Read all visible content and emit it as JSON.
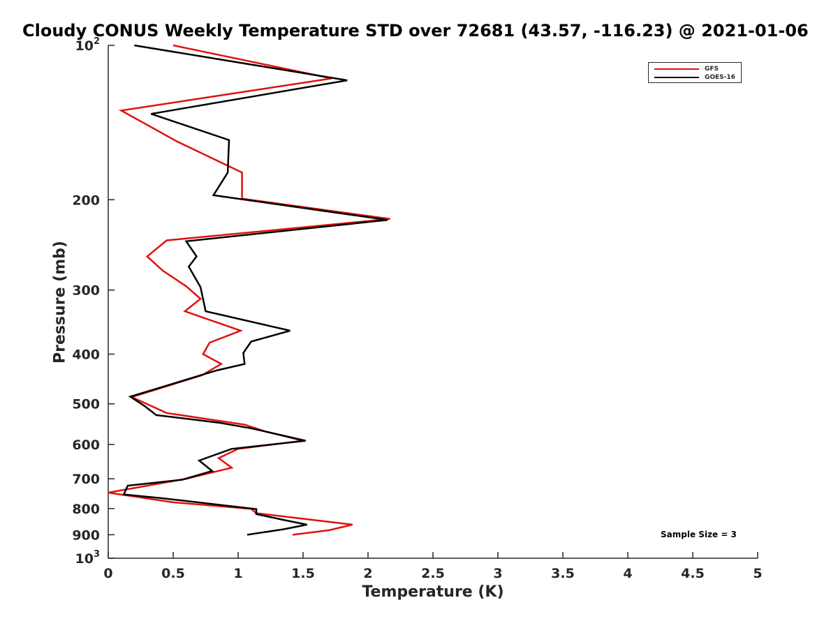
{
  "chart_data": {
    "type": "line",
    "title": "Cloudy CONUS Weekly Temperature STD over 72681 (43.57, -116.23) @ 2021-01-06",
    "xlabel": "Temperature (K)",
    "ylabel": "Pressure (mb)",
    "xlim": [
      0,
      5
    ],
    "ylim": [
      100,
      1000
    ],
    "y_scale": "log",
    "y_reversed": true,
    "grid": false,
    "legend_position": "top-right",
    "x_ticks": [
      "0",
      "0.5",
      "1",
      "1.5",
      "2",
      "2.5",
      "3",
      "3.5",
      "4",
      "4.5",
      "5"
    ],
    "y_ticks": [
      {
        "value": 100,
        "label": "10",
        "sup": "2"
      },
      {
        "value": 200,
        "label": "200",
        "sup": ""
      },
      {
        "value": 300,
        "label": "300",
        "sup": ""
      },
      {
        "value": 400,
        "label": "400",
        "sup": ""
      },
      {
        "value": 500,
        "label": "500",
        "sup": ""
      },
      {
        "value": 600,
        "label": "600",
        "sup": ""
      },
      {
        "value": 700,
        "label": "700",
        "sup": ""
      },
      {
        "value": 800,
        "label": "800",
        "sup": ""
      },
      {
        "value": 900,
        "label": "900",
        "sup": ""
      },
      {
        "value": 1000,
        "label": "10",
        "sup": "3"
      }
    ],
    "series": [
      {
        "name": "GFS",
        "color": "#e01010",
        "points": [
          [
            0.5,
            100
          ],
          [
            1.72,
            116
          ],
          [
            0.1,
            134
          ],
          [
            0.53,
            154
          ],
          [
            1.03,
            177
          ],
          [
            1.03,
            199
          ],
          [
            2.17,
            218
          ],
          [
            0.45,
            240
          ],
          [
            0.3,
            258
          ],
          [
            0.42,
            275
          ],
          [
            0.6,
            295
          ],
          [
            0.71,
            312
          ],
          [
            0.59,
            330
          ],
          [
            1.02,
            360
          ],
          [
            0.78,
            380
          ],
          [
            0.73,
            400
          ],
          [
            0.87,
            418
          ],
          [
            0.72,
            440
          ],
          [
            0.18,
            485
          ],
          [
            0.45,
            521
          ],
          [
            1.05,
            549
          ],
          [
            1.2,
            565
          ],
          [
            1.5,
            590
          ],
          [
            1.0,
            612
          ],
          [
            0.85,
            638
          ],
          [
            0.95,
            666
          ],
          [
            0.6,
            700
          ],
          [
            0.0,
            745
          ],
          [
            0.5,
            778
          ],
          [
            1.1,
            801
          ],
          [
            1.14,
            817
          ],
          [
            1.88,
            860
          ],
          [
            1.7,
            882
          ],
          [
            1.42,
            900
          ]
        ]
      },
      {
        "name": "GOES-16",
        "color": "#000000",
        "points": [
          [
            0.2,
            100
          ],
          [
            1.84,
            117
          ],
          [
            0.33,
            136
          ],
          [
            0.93,
            153
          ],
          [
            0.92,
            177
          ],
          [
            0.81,
            196
          ],
          [
            2.15,
            219
          ],
          [
            0.6,
            241
          ],
          [
            0.68,
            258
          ],
          [
            0.62,
            270
          ],
          [
            0.71,
            296
          ],
          [
            0.75,
            330
          ],
          [
            1.4,
            360
          ],
          [
            1.1,
            378
          ],
          [
            1.04,
            398
          ],
          [
            1.05,
            418
          ],
          [
            0.84,
            430
          ],
          [
            0.17,
            484
          ],
          [
            0.28,
            505
          ],
          [
            0.37,
            526
          ],
          [
            0.85,
            544
          ],
          [
            1.1,
            558
          ],
          [
            1.52,
            590
          ],
          [
            0.95,
            612
          ],
          [
            0.7,
            645
          ],
          [
            0.8,
            676
          ],
          [
            0.57,
            703
          ],
          [
            0.15,
            722
          ],
          [
            0.12,
            751
          ],
          [
            0.4,
            763
          ],
          [
            1.14,
            802
          ],
          [
            1.14,
            820
          ],
          [
            1.35,
            842
          ],
          [
            1.53,
            860
          ],
          [
            1.35,
            878
          ],
          [
            1.07,
            900
          ]
        ]
      }
    ],
    "legend": [
      "GFS",
      "GOES-16"
    ],
    "annotation": "Sample Size = 3"
  }
}
